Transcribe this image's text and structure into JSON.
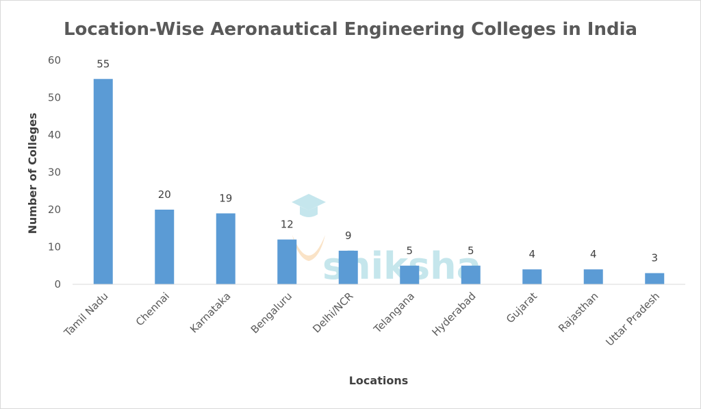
{
  "chart_data": {
    "type": "bar",
    "title": "Location-Wise Aeronautical Engineering Colleges in India",
    "xlabel": "Locations",
    "ylabel": "Number of Colleges",
    "categories": [
      "Tamil Nadu",
      "Chennai",
      "Karnataka",
      "Bengaluru",
      "Delhi/NCR",
      "Telangana",
      "Hyderabad",
      "Gujarat",
      "Rajasthan",
      "Uttar Pradesh"
    ],
    "values": [
      55,
      20,
      19,
      12,
      9,
      5,
      5,
      4,
      4,
      3
    ],
    "ylim": [
      0,
      60
    ],
    "yticks": [
      0,
      10,
      20,
      30,
      40,
      50,
      60
    ],
    "grid": false,
    "legend": "none",
    "bar_color": "#5b9bd5",
    "axis_color": "#d9d9d9",
    "watermark": "shiksha"
  }
}
